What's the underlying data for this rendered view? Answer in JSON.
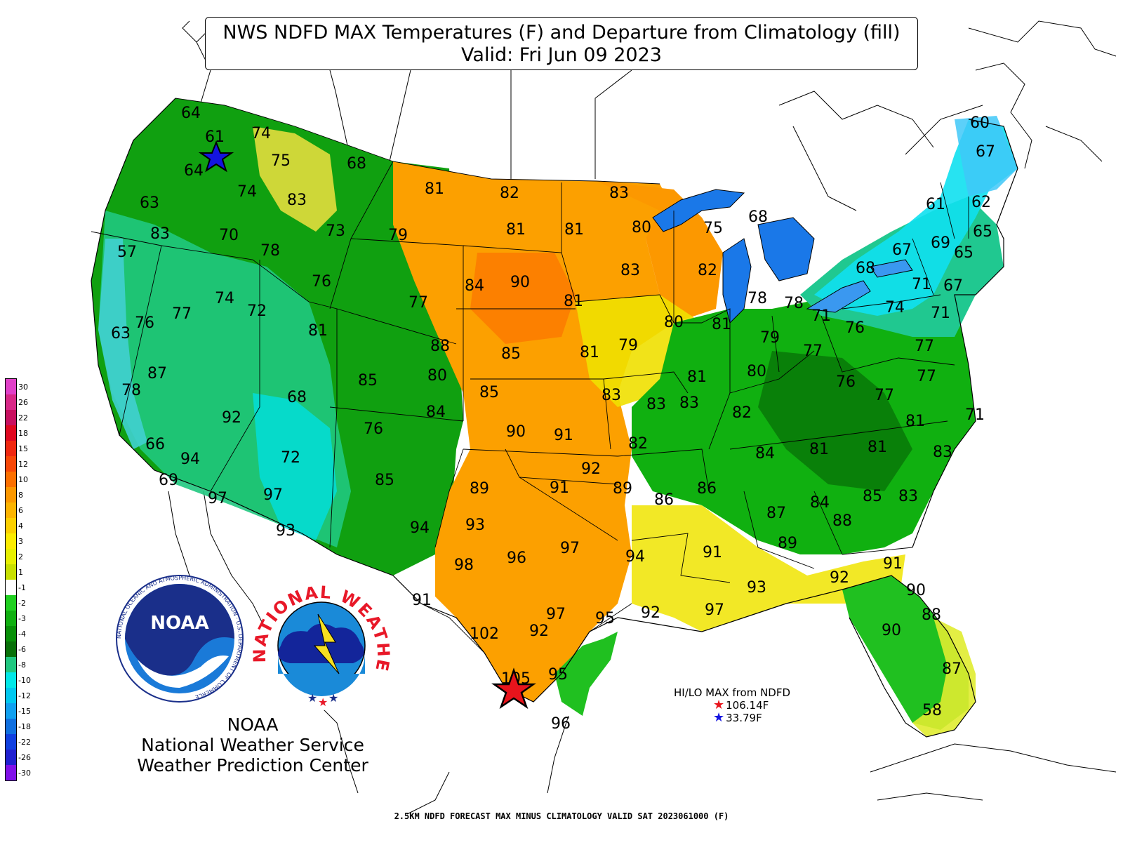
{
  "title": {
    "line1": "NWS NDFD MAX Temperatures (F) and Departure from Climatology (fill)",
    "line2": "Valid: Fri Jun 09 2023"
  },
  "footer": "2.5KM NDFD FORECAST MAX MINUS CLIMATOLOGY VALID SAT 2023061000 (F)",
  "hilo": {
    "heading": "HI/LO MAX from NDFD",
    "hi": "106.14F",
    "lo": "33.79F",
    "hi_color": "#e8141c",
    "lo_color": "#1414e0"
  },
  "agency": {
    "line1": "NOAA",
    "line2": "National Weather Service",
    "line3": "Weather Prediction Center"
  },
  "logos": {
    "noaa_text": "NOAA",
    "nws_text": "NATIONAL WEATHER SERVICE",
    "noaa_ring_text": "NATIONAL OCEANIC AND ATMOSPHERIC ADMINISTRATION · U.S. DEPARTMENT OF COMMERCE"
  },
  "legend": [
    {
      "label": "30",
      "color": "#e040c8"
    },
    {
      "label": "26",
      "color": "#d82888"
    },
    {
      "label": "22",
      "color": "#c81060"
    },
    {
      "label": "18",
      "color": "#e00820"
    },
    {
      "label": "15",
      "color": "#f02810"
    },
    {
      "label": "12",
      "color": "#f84808"
    },
    {
      "label": "10",
      "color": "#fc7000"
    },
    {
      "label": "8",
      "color": "#fc9800"
    },
    {
      "label": "6",
      "color": "#fcb400"
    },
    {
      "label": "4",
      "color": "#fcd000"
    },
    {
      "label": "3",
      "color": "#fcec00"
    },
    {
      "label": "2",
      "color": "#e8f000"
    },
    {
      "label": "1",
      "color": "#c8e000"
    },
    {
      "label": "-1",
      "color": "#ffffff"
    },
    {
      "label": "-2",
      "color": "#20d020"
    },
    {
      "label": "-3",
      "color": "#10b010"
    },
    {
      "label": "-4",
      "color": "#089008"
    },
    {
      "label": "-6",
      "color": "#087008"
    },
    {
      "label": "-8",
      "color": "#20c880"
    },
    {
      "label": "-10",
      "color": "#00e8e8"
    },
    {
      "label": "-12",
      "color": "#00c8f0"
    },
    {
      "label": "-15",
      "color": "#10a0f0"
    },
    {
      "label": "-18",
      "color": "#1070e0"
    },
    {
      "label": "-22",
      "color": "#1040e0"
    },
    {
      "label": "-26",
      "color": "#2020d0"
    },
    {
      "label": "-30",
      "color": "#8010e8"
    }
  ],
  "temps": [
    {
      "v": "64"
    },
    {
      "v": "61"
    },
    {
      "v": "74"
    },
    {
      "v": "75"
    },
    {
      "v": "68"
    },
    {
      "v": "64"
    },
    {
      "v": "63"
    },
    {
      "v": "74"
    },
    {
      "v": "83"
    },
    {
      "v": "81"
    },
    {
      "v": "82"
    },
    {
      "v": "83"
    },
    {
      "v": "83"
    },
    {
      "v": "70"
    },
    {
      "v": "73"
    },
    {
      "v": "79"
    },
    {
      "v": "81"
    },
    {
      "v": "81"
    },
    {
      "v": "80"
    },
    {
      "v": "75"
    },
    {
      "v": "68"
    },
    {
      "v": "57"
    },
    {
      "v": "78"
    },
    {
      "v": "83"
    },
    {
      "v": "82"
    },
    {
      "v": "76"
    },
    {
      "v": "84"
    },
    {
      "v": "90"
    },
    {
      "v": "74"
    },
    {
      "v": "72"
    },
    {
      "v": "77"
    },
    {
      "v": "81"
    },
    {
      "v": "78"
    },
    {
      "v": "78"
    },
    {
      "v": "79"
    },
    {
      "v": "77"
    },
    {
      "v": "81"
    },
    {
      "v": "80"
    },
    {
      "v": "81"
    },
    {
      "v": "79"
    },
    {
      "v": "63"
    },
    {
      "v": "76"
    },
    {
      "v": "88"
    },
    {
      "v": "85"
    },
    {
      "v": "81"
    },
    {
      "v": "77"
    },
    {
      "v": "87"
    },
    {
      "v": "85"
    },
    {
      "v": "80"
    },
    {
      "v": "80"
    },
    {
      "v": "81"
    },
    {
      "v": "78"
    },
    {
      "v": "85"
    },
    {
      "v": "83"
    },
    {
      "v": "83"
    },
    {
      "v": "83"
    },
    {
      "v": "68"
    },
    {
      "v": "84"
    },
    {
      "v": "92"
    },
    {
      "v": "76"
    },
    {
      "v": "90"
    },
    {
      "v": "91"
    },
    {
      "v": "82"
    },
    {
      "v": "82"
    },
    {
      "v": "84"
    },
    {
      "v": "66"
    },
    {
      "v": "94"
    },
    {
      "v": "72"
    },
    {
      "v": "69"
    },
    {
      "v": "85"
    },
    {
      "v": "92"
    },
    {
      "v": "89"
    },
    {
      "v": "91"
    },
    {
      "v": "89"
    },
    {
      "v": "86"
    },
    {
      "v": "86"
    },
    {
      "v": "97"
    },
    {
      "v": "97"
    },
    {
      "v": "94"
    },
    {
      "v": "93"
    },
    {
      "v": "93"
    },
    {
      "v": "87"
    },
    {
      "v": "84"
    },
    {
      "v": "88"
    },
    {
      "v": "89"
    },
    {
      "v": "98"
    },
    {
      "v": "96"
    },
    {
      "v": "97"
    },
    {
      "v": "94"
    },
    {
      "v": "91"
    },
    {
      "v": "93"
    },
    {
      "v": "92"
    },
    {
      "v": "91"
    },
    {
      "v": "91"
    },
    {
      "v": "92"
    },
    {
      "v": "97"
    },
    {
      "v": "95"
    },
    {
      "v": "97"
    },
    {
      "v": "92"
    },
    {
      "v": "102"
    },
    {
      "v": "105"
    },
    {
      "v": "95"
    },
    {
      "v": "96"
    },
    {
      "v": "90"
    },
    {
      "v": "88"
    },
    {
      "v": "90"
    },
    {
      "v": "87"
    },
    {
      "v": "58"
    },
    {
      "v": "60"
    },
    {
      "v": "67"
    },
    {
      "v": "61"
    },
    {
      "v": "62"
    },
    {
      "v": "65"
    },
    {
      "v": "67"
    },
    {
      "v": "69"
    },
    {
      "v": "65"
    },
    {
      "v": "68"
    },
    {
      "v": "71"
    },
    {
      "v": "67"
    },
    {
      "v": "74"
    },
    {
      "v": "71"
    },
    {
      "v": "71"
    },
    {
      "v": "76"
    },
    {
      "v": "77"
    },
    {
      "v": "76"
    },
    {
      "v": "77"
    },
    {
      "v": "77"
    },
    {
      "v": "71"
    },
    {
      "v": "81"
    },
    {
      "v": "81"
    },
    {
      "v": "81"
    },
    {
      "v": "83"
    },
    {
      "v": "85"
    },
    {
      "v": "83"
    }
  ]
}
